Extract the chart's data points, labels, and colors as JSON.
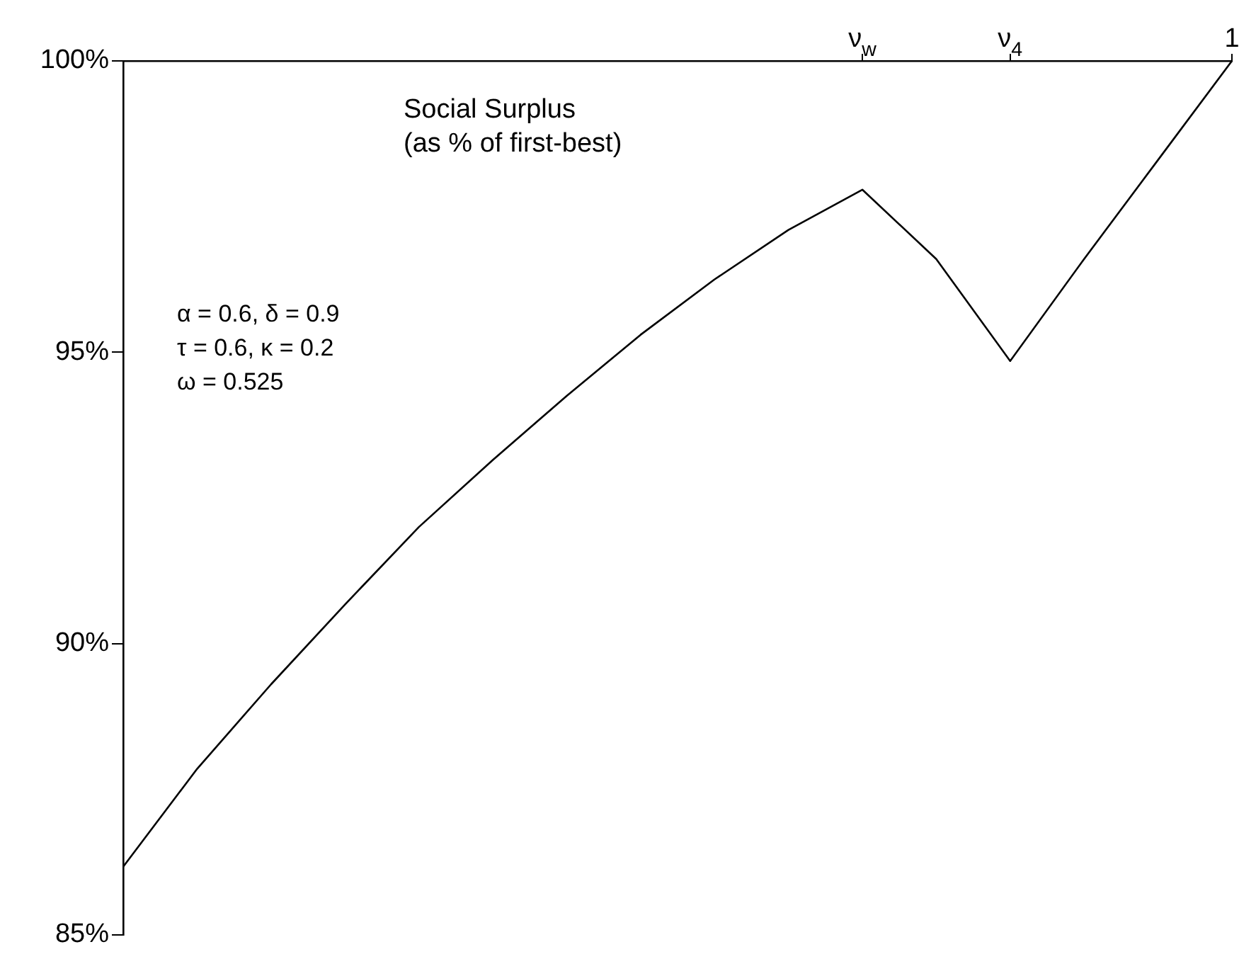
{
  "chart_data": {
    "type": "line",
    "annotations": [
      "Social Surplus\n(as % of first-best)",
      "α = 0.6, δ = 0.9\nτ = 0.6, κ = 0.2\nω = 0.525"
    ],
    "categories": [
      null,
      null,
      null,
      null,
      null,
      null,
      null,
      null,
      null,
      null,
      "ν$_{w}$",
      null,
      "ν$_{4}$",
      null,
      null,
      "1"
    ],
    "series": [
      {
        "color": "#000000",
        "values": [
          86.17,
          87.85,
          89.3,
          90.67,
          92.0,
          93.15,
          94.25,
          95.3,
          96.25,
          97.1,
          97.79,
          96.6,
          94.85,
          96.6,
          98.3,
          100
        ]
      }
    ],
    "ylim": [
      85,
      100
    ],
    "yticks": [
      {
        "value": 85,
        "label": "85%"
      },
      {
        "value": 90,
        "label": "90%"
      },
      {
        "value": 95,
        "label": "95%"
      },
      {
        "value": 100,
        "label": "100%"
      }
    ],
    "grid": false,
    "legend": false,
    "marker": "none",
    "line_style": "solid"
  }
}
